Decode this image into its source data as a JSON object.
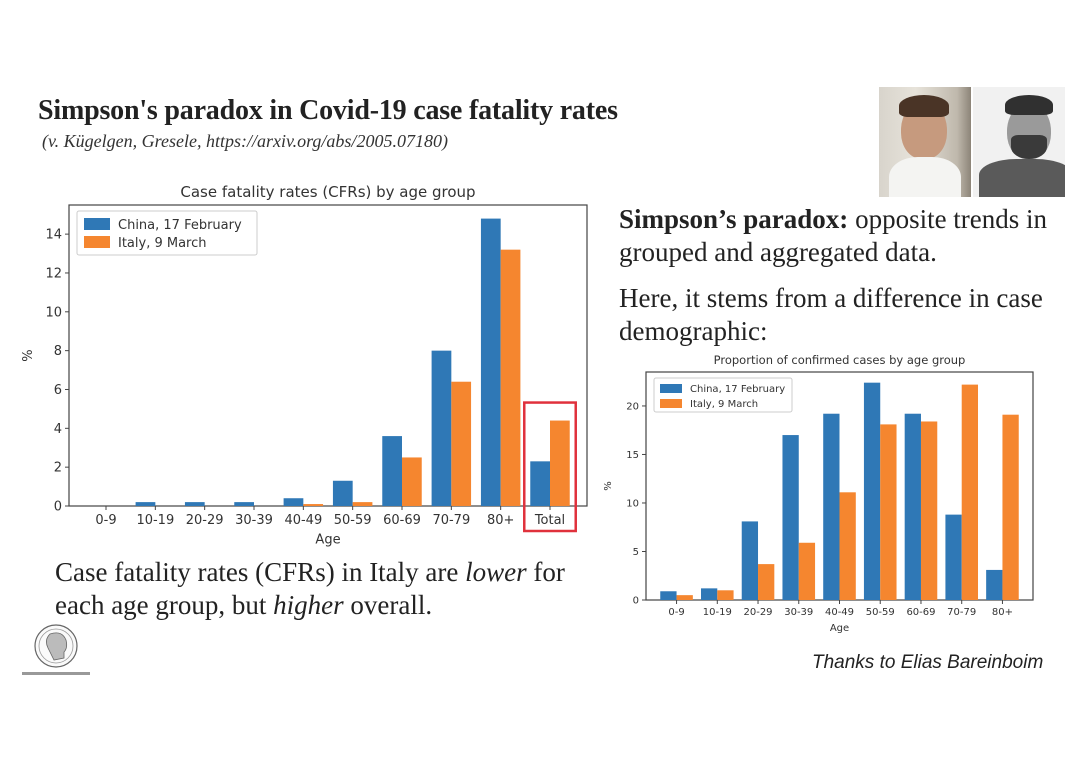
{
  "slide": {
    "title": "Simpson's paradox in Covid-19 case fatality rates",
    "subtitle": "(v. Kügelgen, Gresele, https://arxiv.org/abs/2005.07180)",
    "right_text": {
      "bold_lead": "Simpson’s paradox:",
      "line1_rest": " opposite trends in grouped and aggregated data.",
      "paragraph2": "Here, it stems from a difference in case demographic:"
    },
    "bottom_text": {
      "part1": "Case fatality rates (CFRs) in Italy are ",
      "em1": "lower",
      "part2": " for each age group, but ",
      "em2": "higher",
      "part3": " overall."
    },
    "thanks": "Thanks to Elias Bareinboim",
    "photos": [
      "author-photo-1",
      "author-photo-2"
    ],
    "logo": "max-planck-logo"
  },
  "colors": {
    "china": "#2f78b6",
    "italy": "#f5862f",
    "highlight": "#e0313c",
    "axis": "#444444"
  },
  "chart_data": [
    {
      "type": "bar",
      "title": "Case fatality rates (CFRs) by age group",
      "xlabel": "Age",
      "ylabel": "%",
      "categories": [
        "0-9",
        "10-19",
        "20-29",
        "30-39",
        "40-49",
        "50-59",
        "60-69",
        "70-79",
        "80+",
        "Total"
      ],
      "series": [
        {
          "name": "China, 17 February",
          "values": [
            0.0,
            0.2,
            0.2,
            0.2,
            0.4,
            1.3,
            3.6,
            8.0,
            14.8,
            2.3
          ]
        },
        {
          "name": "Italy, 9 March",
          "values": [
            0.0,
            0.0,
            0.0,
            0.0,
            0.1,
            0.2,
            2.5,
            6.4,
            13.2,
            4.4
          ]
        }
      ],
      "ylim": [
        0,
        15.5
      ],
      "yticks": [
        0,
        2,
        4,
        6,
        8,
        10,
        12,
        14
      ],
      "legend": "top-left",
      "grid": false,
      "annotation": {
        "type": "highlight-box",
        "category": "Total"
      }
    },
    {
      "type": "bar",
      "title": "Proportion of confirmed cases by age group",
      "xlabel": "Age",
      "ylabel": "%",
      "categories": [
        "0-9",
        "10-19",
        "20-29",
        "30-39",
        "40-49",
        "50-59",
        "60-69",
        "70-79",
        "80+"
      ],
      "series": [
        {
          "name": "China, 17 February",
          "values": [
            0.9,
            1.2,
            8.1,
            17.0,
            19.2,
            22.4,
            19.2,
            8.8,
            3.1
          ]
        },
        {
          "name": "Italy, 9 March",
          "values": [
            0.5,
            1.0,
            3.7,
            5.9,
            11.1,
            18.1,
            18.4,
            22.2,
            19.1
          ]
        }
      ],
      "ylim": [
        0,
        23.5
      ],
      "yticks": [
        0,
        5,
        10,
        15,
        20
      ],
      "legend": "top-left",
      "grid": false
    }
  ]
}
